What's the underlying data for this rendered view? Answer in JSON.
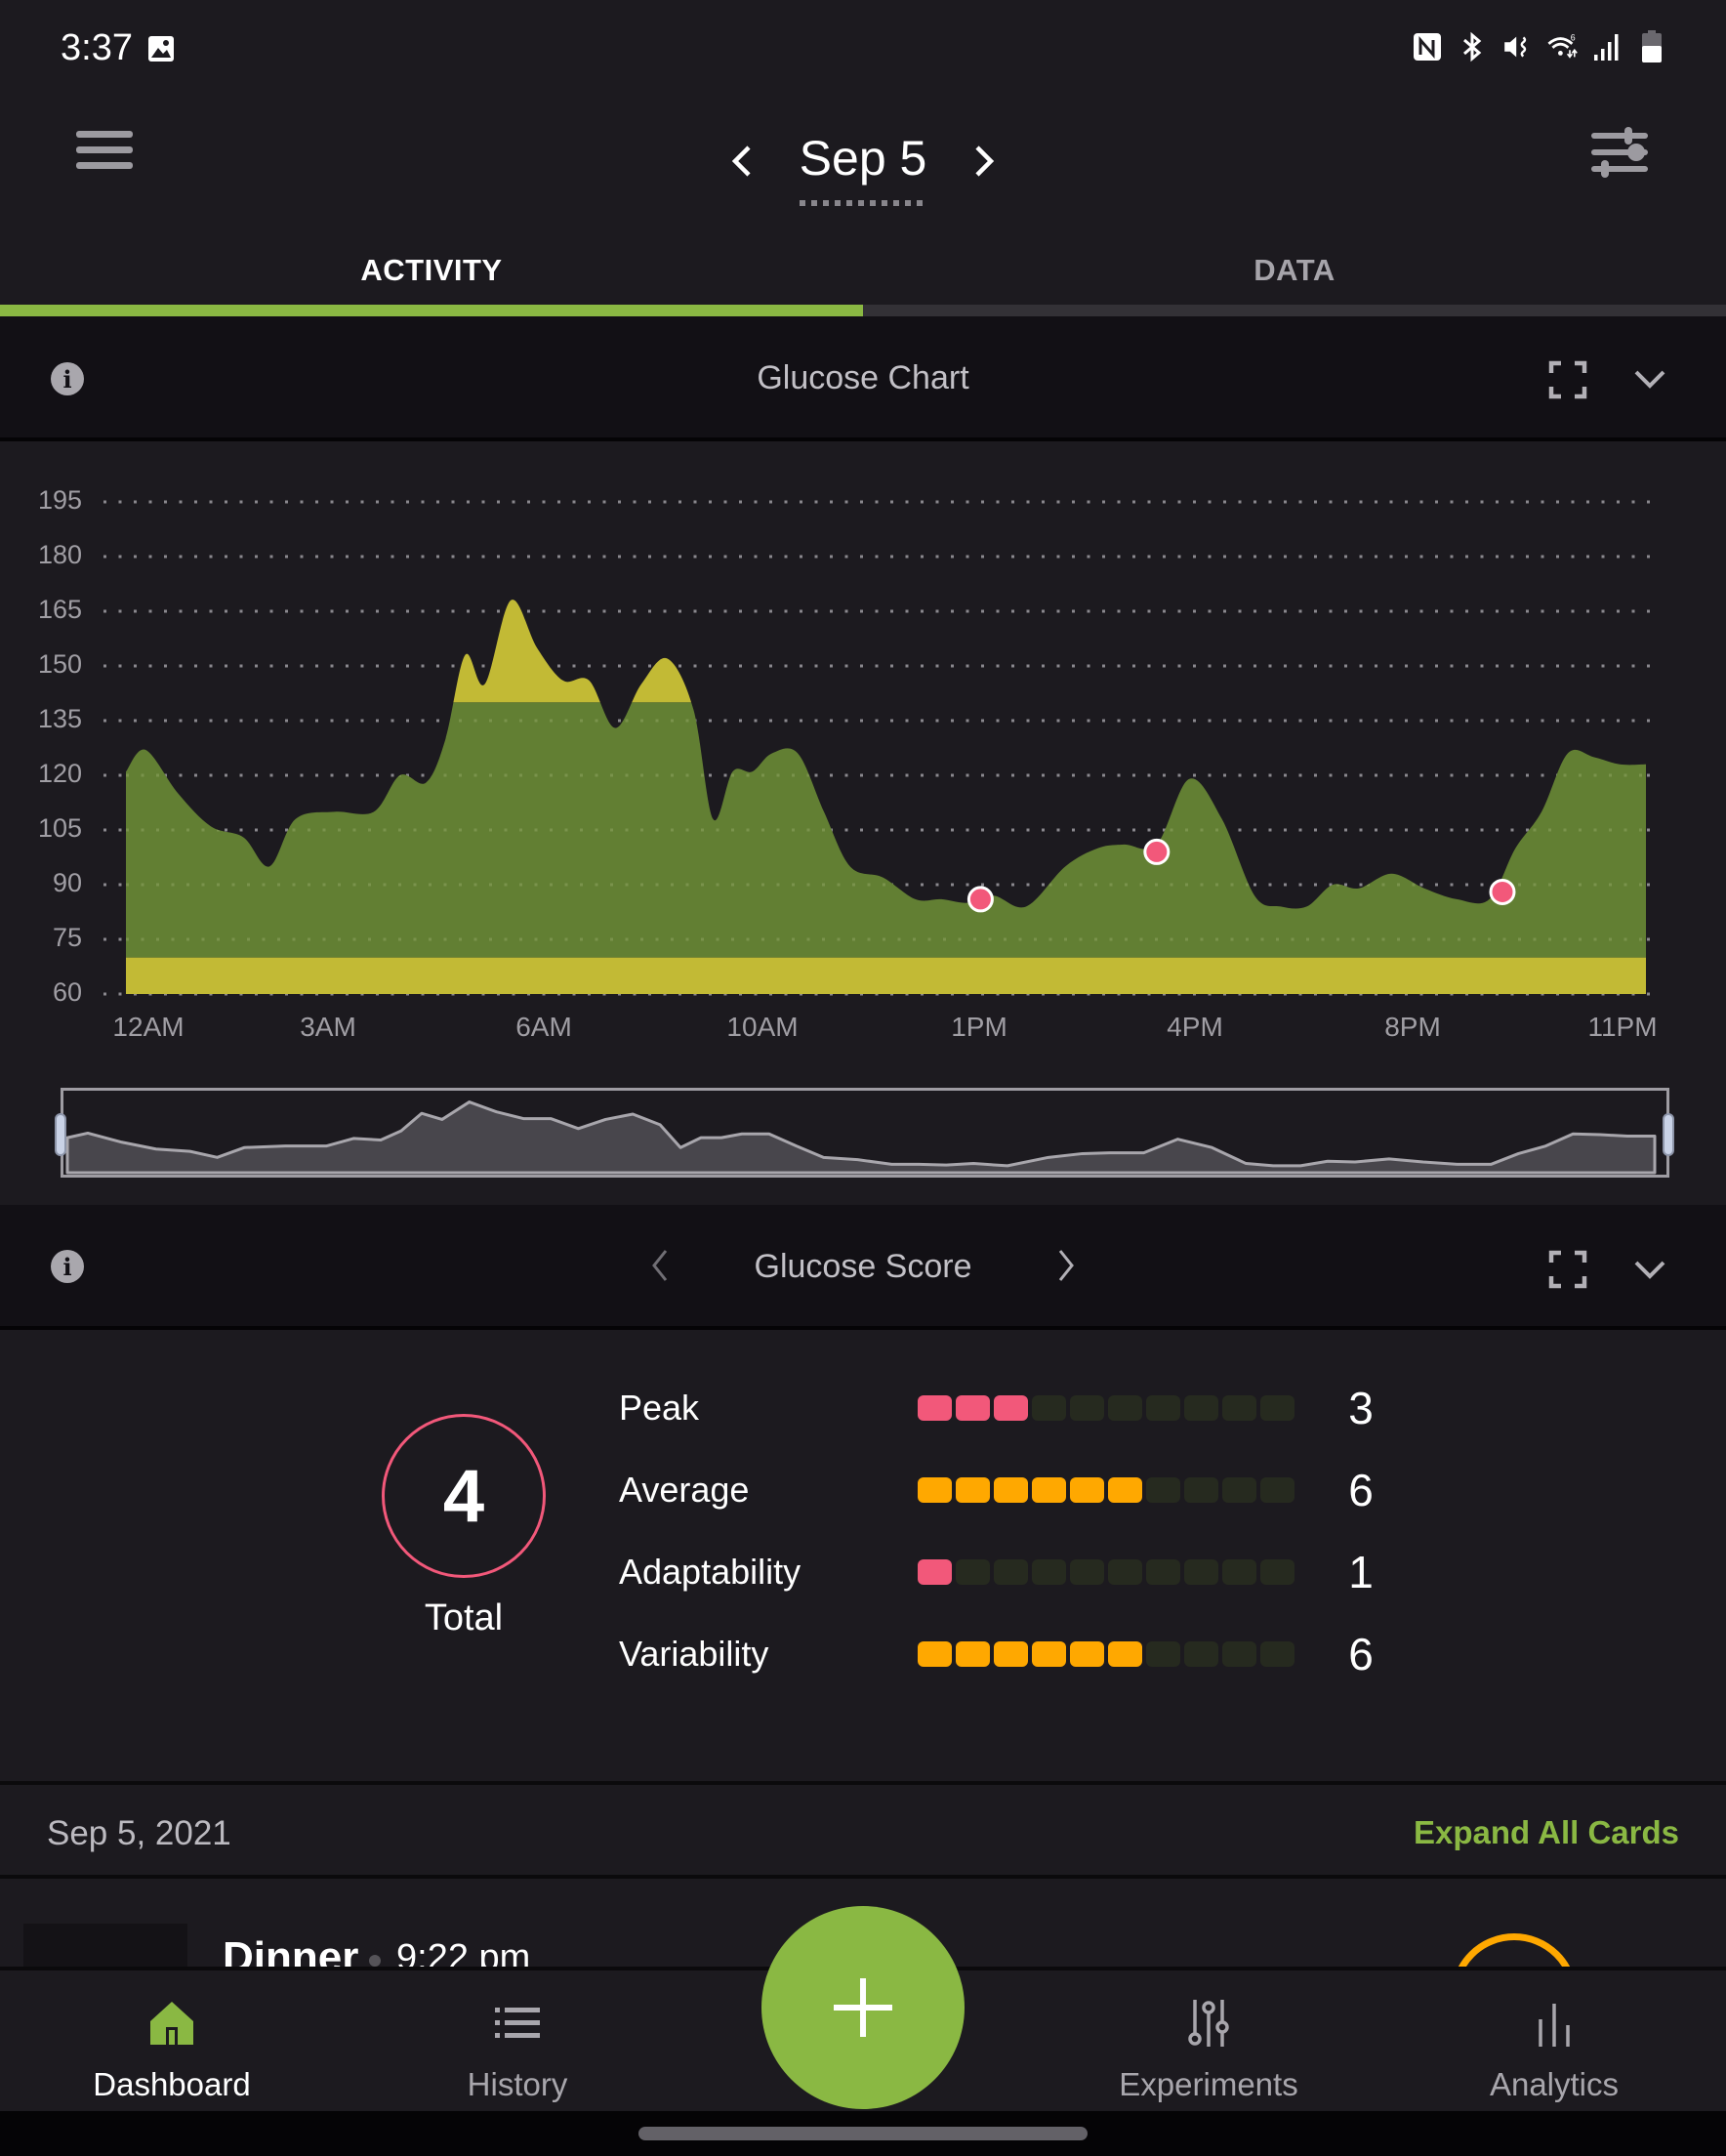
{
  "status_bar": {
    "time": "3:37",
    "icons": [
      "gallery-icon",
      "nfc-icon",
      "bluetooth-icon",
      "mute-vibrate-icon",
      "wifi-icon",
      "signal-icon",
      "battery-icon"
    ],
    "wifi_badge": "6"
  },
  "header": {
    "date": "Sep 5",
    "prev_label": "previous day",
    "next_label": "next day"
  },
  "tabs": [
    {
      "label": "ACTIVITY",
      "active": true
    },
    {
      "label": "DATA",
      "active": false
    }
  ],
  "glucose_chart_card": {
    "title": "Glucose Chart"
  },
  "glucose_score_card": {
    "title": "Glucose Score"
  },
  "score": {
    "total": "4",
    "total_label": "Total",
    "metrics": [
      {
        "label": "Peak",
        "value": "3",
        "filled": 3,
        "color": "#f2587a"
      },
      {
        "label": "Average",
        "value": "6",
        "filled": 6,
        "color": "#ffa800"
      },
      {
        "label": "Adaptability",
        "value": "1",
        "filled": 1,
        "color": "#f2587a"
      },
      {
        "label": "Variability",
        "value": "6",
        "filled": 6,
        "color": "#ffa800"
      }
    ],
    "segments_total": 10
  },
  "date_row": {
    "date": "Sep 5, 2021",
    "expand_all": "Expand All Cards"
  },
  "entry": {
    "title": "Dinner",
    "time": "9:22 pm"
  },
  "bottom_nav": [
    {
      "label": "Dashboard",
      "icon": "home-icon",
      "active": true
    },
    {
      "label": "History",
      "icon": "list-icon",
      "active": false
    },
    {
      "label": "Experiments",
      "icon": "sliders-icon",
      "active": false
    },
    {
      "label": "Analytics",
      "icon": "bar-chart-icon",
      "active": false
    }
  ],
  "fab": {
    "icon": "plus-icon"
  },
  "colors": {
    "accent": "#8ab843",
    "area_green": "#627f33",
    "out_of_range_yellow": "#c2ba35",
    "marker_pink": "#f2587a",
    "amber": "#ffa800",
    "background": "#1c1a1f"
  },
  "chart_data": {
    "type": "area",
    "title": "Glucose Chart",
    "xlabel": "",
    "ylabel": "",
    "y_ticks": [
      "195",
      "180",
      "165",
      "150",
      "135",
      "120",
      "105",
      "90",
      "75",
      "60"
    ],
    "x_ticks": [
      "12AM",
      "3AM",
      "6AM",
      "10AM",
      "1PM",
      "4PM",
      "8PM",
      "11PM"
    ],
    "ylim": [
      60,
      195
    ],
    "grid": "dotted horizontal",
    "target_range": [
      70,
      140
    ],
    "series": [
      {
        "name": "Glucose",
        "x_hours": [
          0,
          0.3,
          0.8,
          1.3,
          1.8,
          2.2,
          2.6,
          3.2,
          3.8,
          4.2,
          4.6,
          4.9,
          5.2,
          5.5,
          5.9,
          6.3,
          6.7,
          7.1,
          7.5,
          7.9,
          8.3,
          8.7,
          9.0,
          9.3,
          9.6,
          9.9,
          10.3,
          10.7,
          11.1,
          11.6,
          12.1,
          12.5,
          12.9,
          13.3,
          13.8,
          14.4,
          14.9,
          15.3,
          15.8,
          16.3,
          16.8,
          17.3,
          17.7,
          18.1,
          18.5,
          18.9,
          19.4,
          19.9,
          20.4,
          20.9,
          21.3,
          21.7,
          22.1,
          22.5,
          22.9,
          23.3
        ],
        "values": [
          121,
          127,
          115,
          106,
          103,
          95,
          108,
          110,
          110,
          120,
          118,
          130,
          153,
          145,
          168,
          155,
          146,
          146,
          133,
          145,
          152,
          138,
          108,
          121,
          121,
          126,
          126,
          110,
          95,
          92,
          86,
          86,
          85,
          87,
          84,
          95,
          100,
          101,
          101,
          119,
          108,
          87,
          84,
          84,
          90,
          89,
          93,
          89,
          86,
          86,
          100,
          110,
          126,
          125,
          123,
          123
        ]
      }
    ],
    "markers": [
      {
        "x_hour": 13.1,
        "value": 86
      },
      {
        "x_hour": 15.8,
        "value": 99
      },
      {
        "x_hour": 21.1,
        "value": 88
      }
    ],
    "x_range_hours": [
      0,
      23.3
    ]
  }
}
